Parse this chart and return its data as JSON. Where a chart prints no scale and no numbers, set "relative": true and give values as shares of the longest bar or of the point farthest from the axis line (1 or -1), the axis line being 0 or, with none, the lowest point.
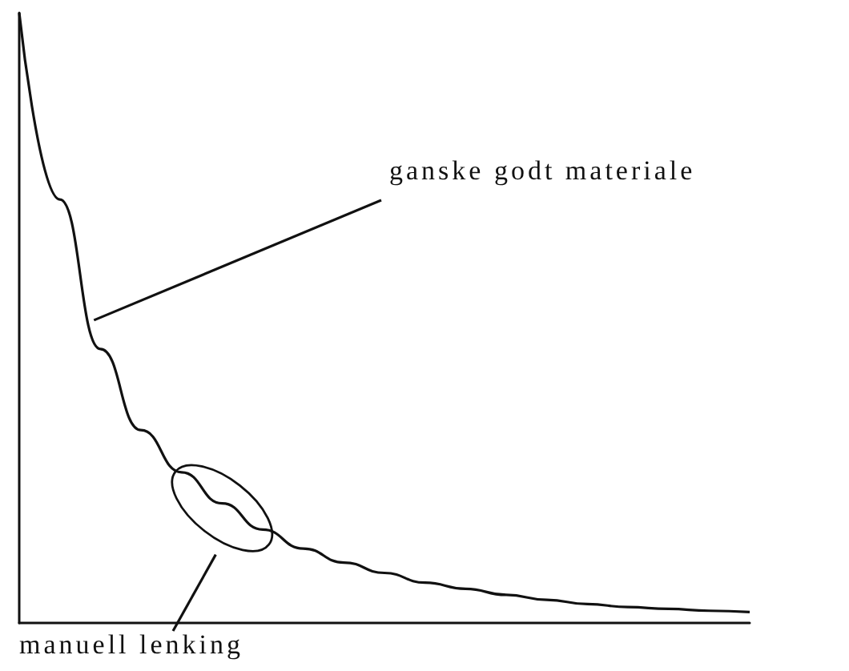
{
  "chart_data": {
    "type": "line",
    "relative": true,
    "categories": [
      null,
      null,
      null,
      null,
      null,
      null,
      null,
      null,
      null,
      null,
      null,
      null,
      null,
      null,
      null,
      null,
      null,
      null,
      null
    ],
    "series": [
      {
        "color": "#111111",
        "values": [
          1,
          0.694,
          0.449,
          0.316,
          0.247,
          0.196,
          0.153,
          0.122,
          0.099,
          0.082,
          0.066,
          0.056,
          0.046,
          0.038,
          0.031,
          0.026,
          0.023,
          0.02,
          0.018
        ]
      }
    ],
    "annotations": [
      "ganske godt materiale",
      "manuell lenking"
    ],
    "marker": "none"
  }
}
